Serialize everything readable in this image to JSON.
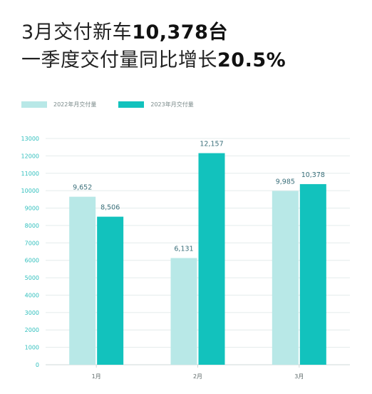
{
  "headline": {
    "line1_prefix": "3月交付新车",
    "line1_emphasis": "10,378台",
    "line2_prefix": "一季度交付量同比增长",
    "line2_emphasis": "20.5%"
  },
  "colors": {
    "series_2022": "#b8e8e7",
    "series_2023": "#12c2bd",
    "axis_text": "#2fbfbd",
    "label_text": "#3a6f7a",
    "grid": "#e4ecec"
  },
  "chart_data": {
    "type": "bar",
    "categories": [
      "1月",
      "2月",
      "3月"
    ],
    "series": [
      {
        "name": "2022年月交付量",
        "values": [
          9652,
          6131,
          9985
        ],
        "labels": [
          "9,652",
          "6,131",
          "9,985"
        ]
      },
      {
        "name": "2023年月交付量",
        "values": [
          8506,
          12157,
          10378
        ],
        "labels": [
          "8,506",
          "12,157",
          "10,378"
        ]
      }
    ],
    "yticks": [
      "0",
      "1000",
      "2000",
      "3000",
      "4000",
      "5000",
      "6000",
      "7000",
      "8000",
      "9000",
      "10000",
      "11000",
      "12000",
      "13000"
    ],
    "ylim": [
      0,
      13000
    ],
    "grid": true,
    "legend": "top-left"
  }
}
